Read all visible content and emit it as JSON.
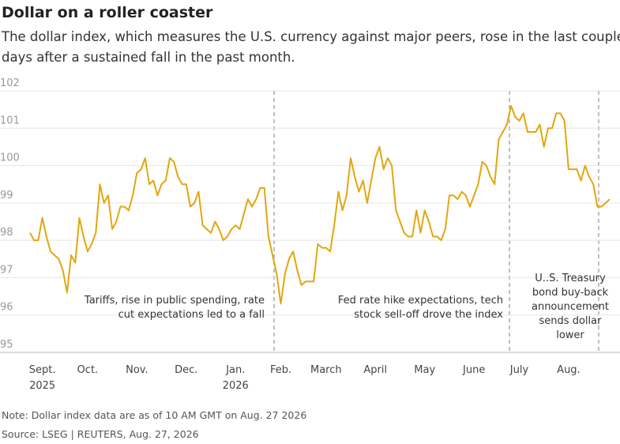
{
  "chart_data": {
    "type": "line",
    "title": "Dollar on a roller coaster",
    "subtitle": [
      "The dollar index, which measures the U.S. currency against major peers, rose in the last couple of",
      "days after a sustained fall in the past month."
    ],
    "categories": [
      null,
      null,
      null,
      "Sept. 2025",
      null,
      null,
      null,
      null,
      null,
      null,
      null,
      null,
      null,
      null,
      "Oct.",
      null,
      null,
      null,
      null,
      null,
      null,
      null,
      null,
      null,
      null,
      null,
      "Nov.",
      null,
      null,
      null,
      null,
      null,
      null,
      null,
      null,
      null,
      null,
      null,
      "Dec.",
      null,
      null,
      null,
      null,
      null,
      null,
      null,
      null,
      null,
      null,
      null,
      "Jan. 2026",
      null,
      null,
      null,
      null,
      null,
      null,
      null,
      null,
      null,
      null,
      "Feb.",
      null,
      null,
      null,
      null,
      null,
      null,
      null,
      null,
      null,
      null,
      "March",
      null,
      null,
      null,
      null,
      null,
      null,
      null,
      null,
      null,
      null,
      null,
      "April",
      null,
      null,
      null,
      null,
      null,
      null,
      null,
      null,
      null,
      null,
      null,
      "May",
      null,
      null,
      null,
      null,
      null,
      null,
      null,
      null,
      null,
      null,
      null,
      "June",
      null,
      null,
      null,
      null,
      null,
      null,
      null,
      null,
      null,
      null,
      "July",
      null,
      null,
      null,
      null,
      null,
      null,
      null,
      null,
      null,
      null,
      null,
      "Aug.",
      null,
      null,
      null,
      null,
      null,
      null,
      null,
      null,
      null,
      null
    ],
    "series": [
      {
        "name": "Dollar index",
        "color": "#e2a60f",
        "values": [
          98.2,
          98.0,
          98.0,
          98.6,
          98.1,
          97.7,
          97.6,
          97.5,
          97.2,
          96.6,
          97.6,
          97.4,
          98.6,
          98.1,
          97.7,
          97.9,
          98.2,
          99.5,
          99.0,
          99.2,
          98.3,
          98.5,
          98.9,
          98.9,
          98.8,
          99.2,
          99.8,
          99.9,
          100.2,
          99.5,
          99.6,
          99.2,
          99.5,
          99.6,
          100.2,
          100.1,
          99.7,
          99.5,
          99.5,
          98.9,
          99.0,
          99.3,
          98.4,
          98.3,
          98.2,
          98.5,
          98.3,
          98.0,
          98.1,
          98.3,
          98.4,
          98.3,
          98.7,
          99.1,
          98.9,
          99.1,
          99.4,
          99.4,
          98.1,
          97.6,
          97.1,
          96.3,
          97.1,
          97.5,
          97.7,
          97.2,
          96.8,
          96.9,
          96.9,
          96.9,
          97.9,
          97.8,
          97.8,
          97.7,
          98.4,
          99.3,
          98.8,
          99.2,
          100.2,
          99.7,
          99.3,
          99.6,
          99.0,
          99.6,
          100.2,
          100.5,
          99.9,
          100.2,
          100.0,
          98.8,
          98.5,
          98.2,
          98.1,
          98.1,
          98.8,
          98.2,
          98.8,
          98.5,
          98.1,
          98.1,
          98.0,
          98.3,
          99.2,
          99.2,
          99.1,
          99.3,
          99.2,
          98.9,
          99.2,
          99.5,
          100.1,
          100.0,
          99.7,
          99.5,
          100.7,
          100.9,
          101.1,
          101.6,
          101.3,
          101.2,
          101.4,
          100.9,
          100.9,
          100.9,
          101.1,
          100.5,
          101.0,
          101.0,
          101.4,
          101.4,
          101.2,
          99.9,
          99.9,
          99.9,
          99.6,
          100.0,
          99.7,
          99.5,
          98.9,
          98.9,
          99.0,
          99.1
        ]
      }
    ],
    "ylim": [
      95,
      102
    ],
    "yticks": [
      95,
      96,
      97,
      98,
      99,
      100,
      101,
      102
    ],
    "grid": true,
    "annotations": [
      [
        "Tariffs, rise in public spending, rate",
        "cut expectations led to a fall"
      ],
      [
        "Fed rate hike expectations, tech",
        "stock sell-off drove the index"
      ],
      [
        "U..S. Treasury",
        "bond buy-back",
        "announcement",
        "sends dollar",
        "lower"
      ]
    ],
    "note": "Note: Dollar index data are as of 10 AM GMT on Aug. 27 2026",
    "source": "Source: LSEG | REUTERS, Aug. 27, 2026"
  }
}
